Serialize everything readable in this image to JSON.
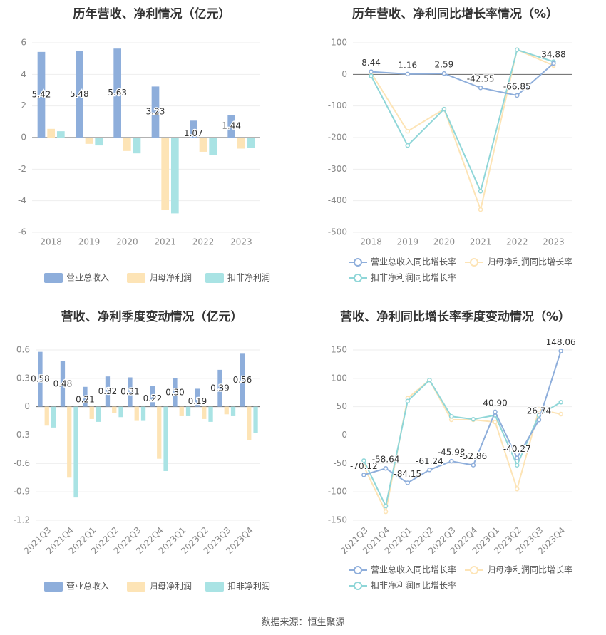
{
  "source_text": "数据来源：恒生聚源",
  "colors": {
    "revenue": "#8eaedb",
    "net_profit": "#fde4b6",
    "deducted_profit": "#a9e3e4",
    "revenue_line": "#8eaedb",
    "net_line": "#fde4b6",
    "deducted_line": "#8fd6d8",
    "grid": "#eeeeee",
    "axis_text": "#888888",
    "title": "#333333"
  },
  "chart_data": [
    {
      "type": "bar",
      "title": "历年营收、净利情况（亿元）",
      "categories": [
        "2018",
        "2019",
        "2020",
        "2021",
        "2022",
        "2023"
      ],
      "ylim": [
        -6,
        6
      ],
      "yticks": [
        6,
        4,
        2,
        0,
        -2,
        -4,
        -6
      ],
      "grid": true,
      "legend_position": "bottom",
      "series": [
        {
          "name": "营业总收入",
          "values": [
            5.42,
            5.48,
            5.63,
            3.23,
            1.07,
            1.44
          ],
          "labels": [
            "5.42",
            "5.48",
            "5.63",
            "3.23",
            "1.07",
            "1.44"
          ]
        },
        {
          "name": "归母净利润",
          "values": [
            0.55,
            -0.4,
            -0.85,
            -4.6,
            -0.9,
            -0.7
          ]
        },
        {
          "name": "扣非净利润",
          "values": [
            0.4,
            -0.5,
            -1.0,
            -4.8,
            -1.1,
            -0.65
          ]
        }
      ]
    },
    {
      "type": "line",
      "title": "历年营收、净利同比增长率情况（%）",
      "categories": [
        "2018",
        "2019",
        "2020",
        "2021",
        "2022",
        "2023"
      ],
      "ylim": [
        -500,
        100
      ],
      "yticks": [
        100,
        0,
        -100,
        -200,
        -300,
        -400,
        -500
      ],
      "grid": true,
      "legend_position": "bottom",
      "series": [
        {
          "name": "营业总收入同比增长率",
          "values": [
            8.44,
            1.16,
            2.59,
            -42.55,
            -66.85,
            34.88
          ],
          "labels": [
            "8.44",
            "1.16",
            "2.59",
            "-42.55",
            "-66.85",
            "34.88"
          ]
        },
        {
          "name": "归母净利润同比增长率",
          "values": [
            5,
            -180,
            -110,
            -428,
            78,
            28
          ]
        },
        {
          "name": "扣非净利润同比增长率",
          "values": [
            -5,
            -225,
            -110,
            -370,
            78,
            40
          ]
        }
      ]
    },
    {
      "type": "bar",
      "title": "营收、净利季度变动情况（亿元）",
      "categories": [
        "2021Q3",
        "2021Q4",
        "2022Q1",
        "2022Q2",
        "2022Q3",
        "2022Q4",
        "2023Q1",
        "2023Q2",
        "2023Q3",
        "2023Q4"
      ],
      "ylim": [
        -1.2,
        0.6
      ],
      "yticks": [
        0.6,
        0.3,
        0,
        -0.3,
        -0.6,
        -0.9,
        -1.2
      ],
      "ytick_labels": [
        "0.6",
        "0.3",
        "0",
        "-0.3",
        "-0.6",
        "-0.9",
        "-1.2"
      ],
      "grid": true,
      "legend_position": "bottom",
      "series": [
        {
          "name": "营业总收入",
          "values": [
            0.58,
            0.48,
            0.21,
            0.32,
            0.31,
            0.22,
            0.3,
            0.19,
            0.39,
            0.56
          ],
          "labels": [
            "0.58",
            "0.48",
            "0.21",
            "0.32",
            "0.31",
            "0.22",
            "0.30",
            "0.19",
            "0.39",
            "0.56"
          ]
        },
        {
          "name": "归母净利润",
          "values": [
            -0.2,
            -0.75,
            -0.13,
            -0.07,
            -0.15,
            -0.55,
            -0.1,
            -0.13,
            -0.08,
            -0.35
          ]
        },
        {
          "name": "扣非净利润",
          "values": [
            -0.22,
            -0.96,
            -0.16,
            -0.11,
            -0.15,
            -0.68,
            -0.1,
            -0.16,
            -0.1,
            -0.28
          ]
        }
      ]
    },
    {
      "type": "line",
      "title": "营收、净利同比增长率季度变动情况（%）",
      "categories": [
        "2021Q3",
        "2021Q4",
        "2022Q1",
        "2022Q2",
        "2022Q3",
        "2022Q4",
        "2023Q1",
        "2023Q2",
        "2023Q3",
        "2023Q4"
      ],
      "ylim": [
        -150,
        150
      ],
      "yticks": [
        150,
        100,
        50,
        0,
        -50,
        -100,
        -150
      ],
      "grid": true,
      "legend_position": "bottom",
      "series": [
        {
          "name": "营业总收入同比增长率",
          "values": [
            -70.12,
            -58.64,
            -84.15,
            -61.24,
            -45.98,
            -52.86,
            40.9,
            -40.27,
            26.74,
            148.06
          ],
          "labels": [
            "-70.12",
            "-58.64",
            "-84.15",
            "-61.24",
            "-45.98",
            "-52.86",
            "40.90",
            "-40.27",
            "26.74",
            "148.06"
          ]
        },
        {
          "name": "归母净利润同比增长率",
          "values": [
            -55,
            -135,
            65,
            97,
            27,
            27,
            23,
            -95,
            45,
            37
          ]
        },
        {
          "name": "扣非净利润同比增长率",
          "values": [
            -45,
            -125,
            60,
            97,
            33,
            28,
            35,
            -53,
            35,
            58
          ]
        }
      ]
    }
  ]
}
